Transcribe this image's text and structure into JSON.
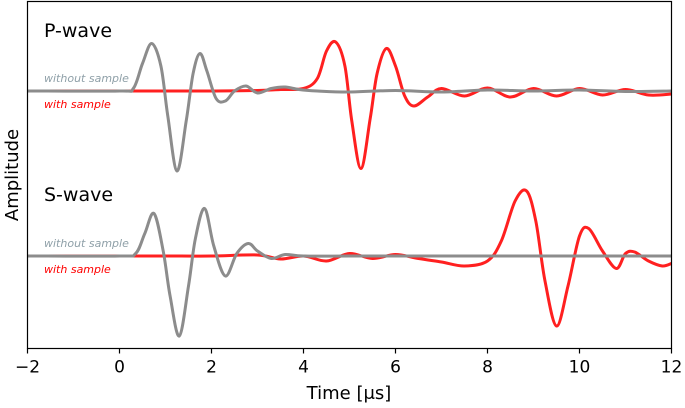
{
  "chart_data": {
    "type": "line",
    "xlabel": "Time [μs]",
    "ylabel": "Amplitude",
    "xlim": [
      -2,
      12
    ],
    "xticks": [
      -2,
      0,
      2,
      4,
      6,
      8,
      10,
      12
    ],
    "xtick_labels": [
      "−2",
      "0",
      "2",
      "4",
      "6",
      "8",
      "10",
      "12"
    ],
    "yticks": [],
    "grid": false,
    "colors": {
      "without": "#8c8c8c",
      "with": "#ff2020",
      "label_without": "#8fa0a8",
      "label_with": "#ff0000"
    },
    "panels": [
      {
        "title": "P-wave",
        "series": [
          {
            "name": "without sample",
            "x": [
              -2,
              0,
              0.3,
              0.5,
              0.7,
              0.9,
              1.05,
              1.25,
              1.45,
              1.6,
              1.75,
              1.9,
              2.1,
              2.3,
              2.5,
              2.75,
              3.0,
              3.3,
              3.6,
              3.9,
              4.3,
              5.0,
              6.0,
              7.0,
              8.0,
              9.0,
              10.0,
              11.0,
              12.0
            ],
            "y": [
              0,
              0,
              0.05,
              0.55,
              0.95,
              0.5,
              -0.5,
              -1.6,
              -0.6,
              0.35,
              0.75,
              0.4,
              -0.15,
              -0.2,
              0.0,
              0.1,
              -0.04,
              0.05,
              0.08,
              0.03,
              0.0,
              -0.02,
              0.01,
              -0.02,
              0.02,
              0.0,
              0.02,
              -0.01,
              0.0
            ]
          },
          {
            "name": "with sample",
            "x": [
              -2,
              0,
              1,
              2,
              3,
              3.5,
              4.0,
              4.3,
              4.5,
              4.7,
              4.9,
              5.05,
              5.25,
              5.45,
              5.6,
              5.8,
              6.0,
              6.2,
              6.4,
              6.7,
              7.0,
              7.5,
              8.0,
              8.5,
              9.0,
              9.5,
              10.0,
              10.5,
              11.0,
              11.5,
              12.0
            ],
            "y": [
              0,
              0,
              0,
              0,
              0.01,
              0.03,
              0.05,
              0.25,
              0.8,
              0.98,
              0.5,
              -0.6,
              -1.55,
              -0.55,
              0.35,
              0.85,
              0.5,
              -0.1,
              -0.3,
              -0.12,
              0.05,
              -0.1,
              0.06,
              -0.12,
              0.05,
              -0.1,
              0.05,
              -0.08,
              0.03,
              -0.08,
              -0.06
            ]
          }
        ]
      },
      {
        "title": "S-wave",
        "series": [
          {
            "name": "without sample",
            "x": [
              -2,
              0,
              0.35,
              0.55,
              0.75,
              0.95,
              1.1,
              1.3,
              1.5,
              1.65,
              1.85,
              2.05,
              2.3,
              2.55,
              2.8,
              3.0,
              3.3,
              3.6,
              4.0,
              5.0,
              6.0,
              7.0,
              8.0,
              9.0,
              10.0,
              11.0,
              12.0
            ],
            "y": [
              0,
              0,
              0.05,
              0.45,
              0.85,
              0.1,
              -0.8,
              -1.6,
              -0.6,
              0.35,
              0.95,
              0.2,
              -0.4,
              0.05,
              0.25,
              0.1,
              -0.05,
              0.03,
              0.0,
              0.0,
              0.0,
              0.0,
              0.0,
              0.0,
              0.0,
              0.0,
              0.0
            ]
          },
          {
            "name": "with sample",
            "x": [
              -2,
              0,
              1,
              2,
              3,
              3.5,
              4.0,
              4.5,
              5.0,
              5.5,
              6.0,
              6.5,
              7.0,
              7.5,
              8.0,
              8.3,
              8.6,
              8.85,
              9.05,
              9.25,
              9.5,
              9.75,
              10.0,
              10.2,
              10.5,
              10.8,
              11.0,
              11.2,
              11.5,
              11.8,
              12.0
            ],
            "y": [
              0,
              0,
              0,
              0,
              0.02,
              -0.06,
              0.0,
              -0.1,
              0.05,
              -0.05,
              0.03,
              -0.05,
              -0.12,
              -0.2,
              -0.1,
              0.3,
              1.1,
              1.3,
              0.7,
              -0.5,
              -1.4,
              -0.6,
              0.4,
              0.55,
              0.1,
              -0.25,
              0.05,
              0.08,
              -0.1,
              -0.2,
              -0.15
            ]
          }
        ]
      }
    ]
  }
}
